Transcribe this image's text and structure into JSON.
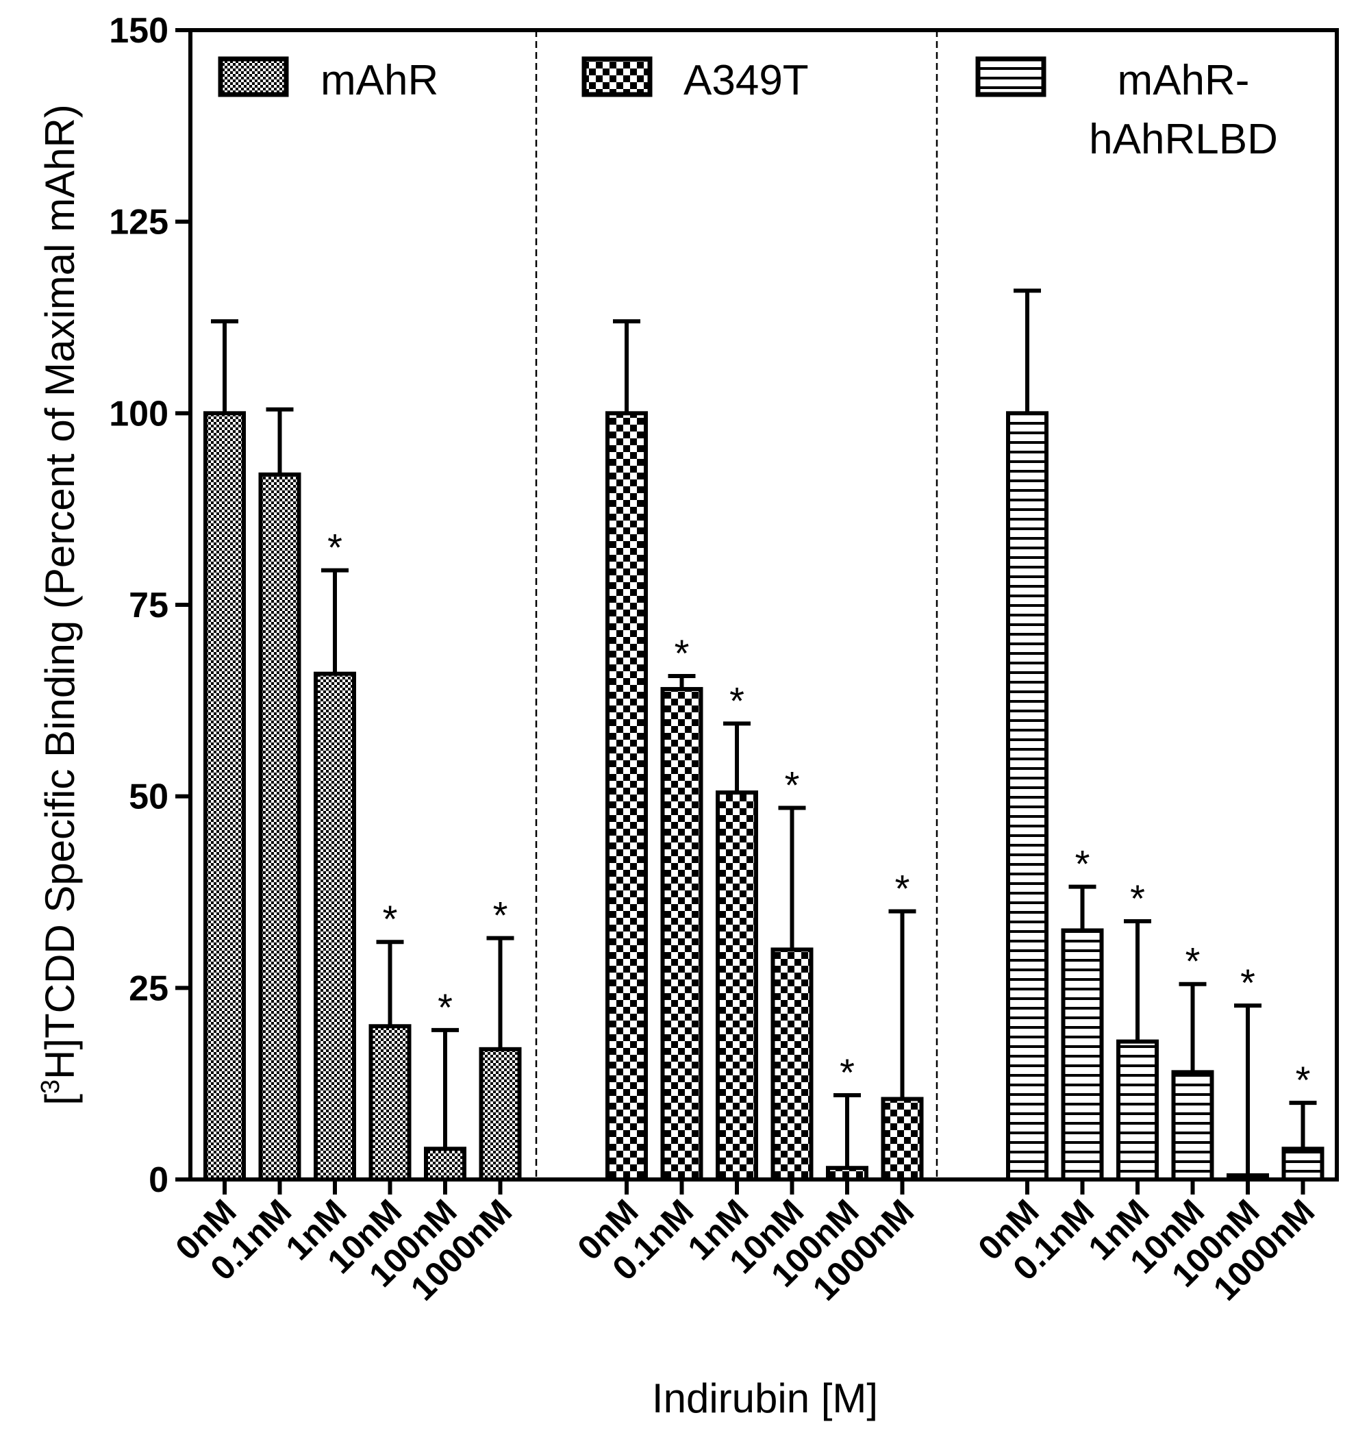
{
  "chart_data": {
    "type": "bar",
    "xlabel": "Indirubin [M]",
    "ylabel_prefix": "[",
    "ylabel_sup": "3",
    "ylabel_rest": "H]TCDD Specific Binding (Percent of Maximal mAhR)",
    "ylim": [
      0,
      150
    ],
    "yticks": [
      "0",
      "25",
      "50",
      "75",
      "100",
      "125",
      "150"
    ],
    "categories": [
      "0nM",
      "0.1nM",
      "1nM",
      "10nM",
      "100nM",
      "1000nM"
    ],
    "series": [
      {
        "name": "mAhR",
        "legend_lines": [
          "mAhR"
        ],
        "pattern": "fine-check",
        "values": [
          100,
          92,
          66,
          20,
          4,
          17
        ],
        "errors": [
          12,
          8.5,
          13.5,
          11,
          15.5,
          14.5
        ],
        "significant": [
          false,
          false,
          true,
          true,
          true,
          true
        ]
      },
      {
        "name": "A349T",
        "legend_lines": [
          "A349T"
        ],
        "pattern": "coarse-check",
        "values": [
          100,
          64,
          50.5,
          30,
          1.5,
          10.5
        ],
        "errors": [
          12,
          1.7,
          9,
          18.5,
          9.5,
          24.5
        ],
        "significant": [
          false,
          true,
          true,
          true,
          true,
          true
        ]
      },
      {
        "name": "mAhR-hAhRLBD",
        "legend_lines": [
          "mAhR-",
          "hAhRLBD"
        ],
        "pattern": "horizontal-stripes",
        "values": [
          100,
          32.5,
          18,
          14,
          0.3,
          4
        ],
        "errors": [
          16,
          5.7,
          15.7,
          11.5,
          22.4,
          6
        ],
        "significant": [
          false,
          true,
          true,
          true,
          true,
          true
        ]
      }
    ],
    "star_label": "*"
  }
}
